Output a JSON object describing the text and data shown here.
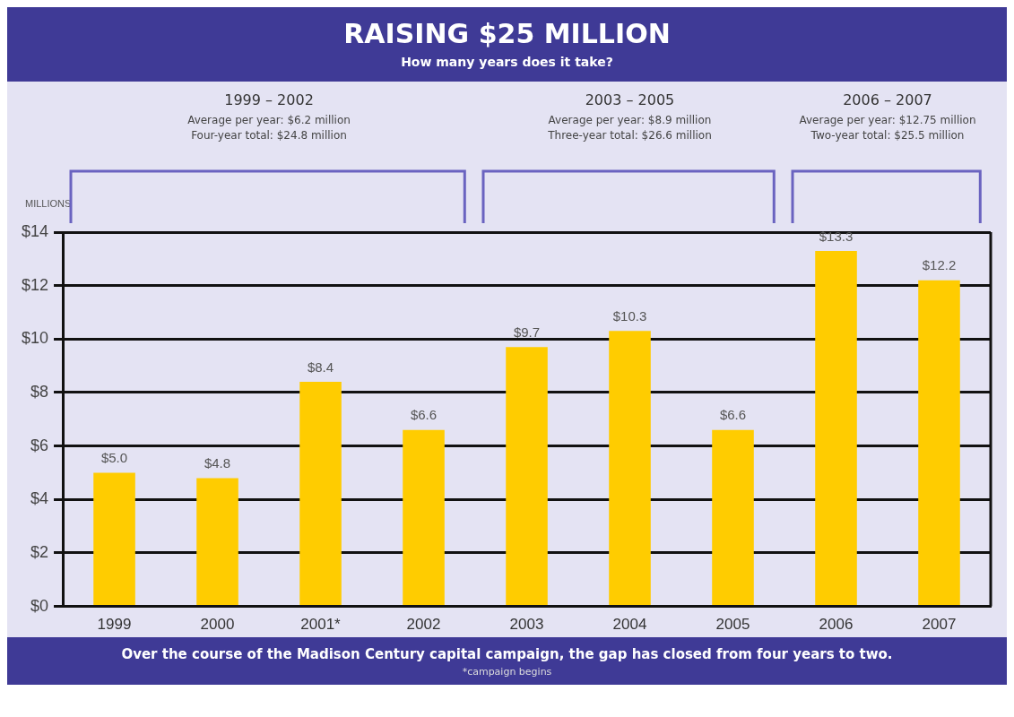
{
  "chart_data": {
    "type": "bar",
    "title": "RAISING $25 MILLION",
    "subtitle": "How many years does it take?",
    "ylabel": "MILLIONS",
    "categories": [
      "1999",
      "2000",
      "2001*",
      "2002",
      "2003",
      "2004",
      "2005",
      "2006",
      "2007"
    ],
    "values": [
      5.0,
      4.8,
      8.4,
      6.6,
      9.7,
      10.3,
      6.6,
      13.3,
      12.2
    ],
    "value_labels": [
      "$5.0",
      "$4.8",
      "$8.4",
      "$6.6",
      "$9.7",
      "$10.3",
      "$6.6",
      "$13.3",
      "$12.2"
    ],
    "color": "#ffcc00",
    "ylim": [
      0,
      14
    ],
    "yticks": [
      {
        "value": 0,
        "label": "$0"
      },
      {
        "value": 2,
        "label": "$2"
      },
      {
        "value": 4,
        "label": "$4"
      },
      {
        "value": 6,
        "label": "$6"
      },
      {
        "value": 8,
        "label": "$8"
      },
      {
        "value": 10,
        "label": "$10"
      },
      {
        "value": 12,
        "label": "$12"
      },
      {
        "value": 14,
        "label": "$14"
      }
    ],
    "grid": "y",
    "legend": false,
    "annotations": [
      "1999 – 2002\nAverage per year: $6.2 million\nFour-year total: $24.8 million",
      "2003 – 2005\nAverage per year: $8.9 million\nThree-year total: $26.6 million",
      "2006 – 2007\nAverage per year: $12.75 million\nTwo-year total: $25.5 million",
      "Over the course of the Madison Century capital campaign, the gap has closed from four years to two.",
      "*campaign begins"
    ]
  }
}
